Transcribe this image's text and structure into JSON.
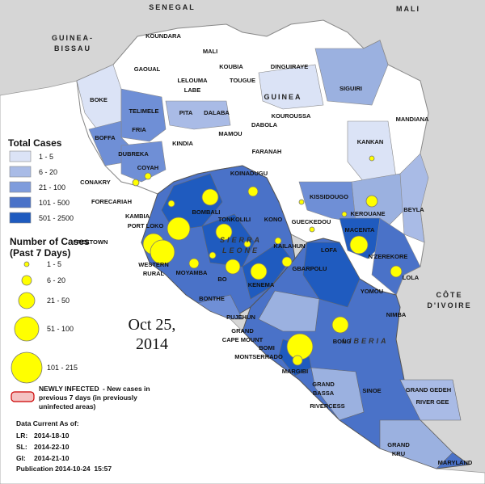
{
  "countries": [
    {
      "lines": [
        "SENEGAL"
      ]
    },
    {
      "lines": [
        "MALI"
      ]
    },
    {
      "lines": [
        "GUINEA-",
        "BISSAU"
      ]
    },
    {
      "lines": [
        "GUINEA"
      ]
    },
    {
      "lines": [
        "SIERRA",
        "LEONE"
      ]
    },
    {
      "lines": [
        "LIBERIA"
      ]
    },
    {
      "lines": [
        "CÔTE",
        "D'IVOIRE"
      ]
    }
  ],
  "labels": [
    {
      "lines": [
        "KOUNDARA"
      ]
    },
    {
      "lines": [
        "MALI"
      ]
    },
    {
      "lines": [
        "GAOUAL"
      ]
    },
    {
      "lines": [
        "KOUBIA"
      ]
    },
    {
      "lines": [
        "LELOUMA"
      ]
    },
    {
      "lines": [
        "LABE"
      ]
    },
    {
      "lines": [
        "TOUGUE"
      ]
    },
    {
      "lines": [
        "DINGUIRAYE"
      ]
    },
    {
      "lines": [
        "SIGUIRI"
      ]
    },
    {
      "lines": [
        "BOKE"
      ]
    },
    {
      "lines": [
        "TELIMELE"
      ]
    },
    {
      "lines": [
        "PITA"
      ]
    },
    {
      "lines": [
        "DALABA"
      ]
    },
    {
      "lines": [
        "KOUROUSSA"
      ]
    },
    {
      "lines": [
        "MANDIANA"
      ]
    },
    {
      "lines": [
        "BOFFA"
      ]
    },
    {
      "lines": [
        "FRIA"
      ]
    },
    {
      "lines": [
        "MAMOU"
      ]
    },
    {
      "lines": [
        "DABOLA"
      ]
    },
    {
      "lines": [
        "KINDIA"
      ]
    },
    {
      "lines": [
        "KANKAN"
      ]
    },
    {
      "lines": [
        "DUBREKA"
      ]
    },
    {
      "lines": [
        "FARANAH"
      ]
    },
    {
      "lines": [
        "COYAH"
      ]
    },
    {
      "lines": [
        "KOINADUGU"
      ]
    },
    {
      "lines": [
        "CONAKRY"
      ]
    },
    {
      "lines": [
        "FORECARIAH"
      ]
    },
    {
      "lines": [
        "KISSIDOUGO"
      ]
    },
    {
      "lines": [
        "BEYLA"
      ]
    },
    {
      "lines": [
        "KEROUANE"
      ]
    },
    {
      "lines": [
        "BOMBALI"
      ]
    },
    {
      "lines": [
        "KAMBIA"
      ]
    },
    {
      "lines": [
        "PORT LOKO"
      ]
    },
    {
      "lines": [
        "TONKOLILI"
      ]
    },
    {
      "lines": [
        "KONO"
      ]
    },
    {
      "lines": [
        "GUECKEDOU"
      ]
    },
    {
      "lines": [
        "FREETOWN"
      ]
    },
    {
      "lines": [
        "MACENTA"
      ]
    },
    {
      "lines": [
        "KAILAHUN"
      ]
    },
    {
      "lines": [
        "N'ZEREKORE"
      ]
    },
    {
      "lines": [
        "WESTERN",
        "RURAL"
      ]
    },
    {
      "lines": [
        "LOFA"
      ]
    },
    {
      "lines": [
        "MOYAMBA"
      ]
    },
    {
      "lines": [
        "BO"
      ]
    },
    {
      "lines": [
        "KENEMA"
      ]
    },
    {
      "lines": [
        "LOLA"
      ]
    },
    {
      "lines": [
        "GBARPOLU"
      ]
    },
    {
      "lines": [
        "YOMOU"
      ]
    },
    {
      "lines": [
        "BONTHE"
      ]
    },
    {
      "lines": [
        "PUJEHUN"
      ]
    },
    {
      "lines": [
        "BONG"
      ]
    },
    {
      "lines": [
        "NIMBA"
      ]
    },
    {
      "lines": [
        "GRAND",
        "CAPE MOUNT"
      ]
    },
    {
      "lines": [
        "BOMI"
      ]
    },
    {
      "lines": [
        "MONTSERRADO"
      ]
    },
    {
      "lines": [
        "MARGIBI"
      ]
    },
    {
      "lines": [
        "GRAND",
        "BASSA"
      ]
    },
    {
      "lines": [
        "SINOE"
      ]
    },
    {
      "lines": [
        "GRAND GEDEH"
      ]
    },
    {
      "lines": [
        "RIVER GEE"
      ]
    },
    {
      "lines": [
        "RIVERCESS"
      ]
    },
    {
      "lines": [
        "GRAND",
        "KRU"
      ]
    },
    {
      "lines": [
        "MARYLAND"
      ]
    }
  ],
  "legend": {
    "total_cases": {
      "title": "Total Cases",
      "items": [
        "1 - 5",
        "6 - 20",
        "21 - 100",
        "101 - 500",
        "501 - 2500"
      ]
    },
    "weekly": {
      "title": [
        "Number of Cases",
        "(Past 7 Days)"
      ],
      "items": [
        "1 - 5",
        "6 - 20",
        "21 - 50",
        "51 - 100",
        "101 - 215"
      ]
    },
    "newly_infected": {
      "heading": "NEWLY INFECTED",
      "text": [
        "- New cases in",
        "previous 7 days (in previously",
        "uninfected areas)"
      ]
    }
  },
  "date": [
    "Oct 25,",
    "2014"
  ],
  "data_current": {
    "title": "Data Current As of:",
    "rows": [
      [
        "LR:",
        "2014-18-10"
      ],
      [
        "SL:",
        "2014-22-10"
      ],
      [
        "GI:",
        "2014-21-10"
      ]
    ],
    "publication": "Publication 2014-10-24  15:57"
  }
}
